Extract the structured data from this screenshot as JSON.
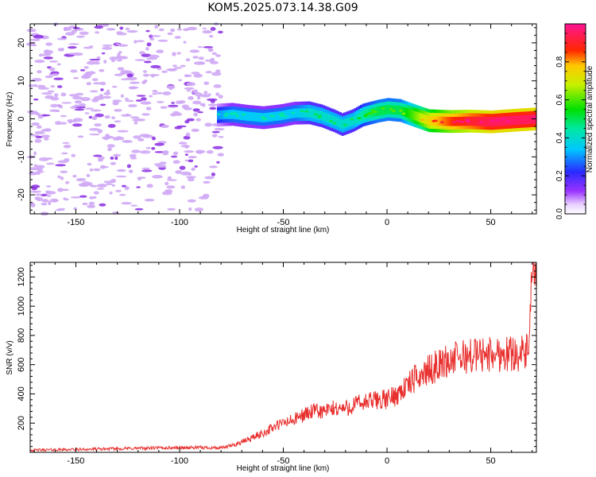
{
  "title": "KOM5.2025.073.14.38.G09",
  "chart_data": [
    {
      "type": "heatmap",
      "xlabel": "Height of straight line (km)",
      "ylabel": "Frequency (Hz)",
      "xlim": [
        -172,
        72
      ],
      "ylim": [
        -25,
        25
      ],
      "xticks": [
        -150,
        -100,
        -50,
        0,
        50
      ],
      "yticks": [
        -20,
        -10,
        0,
        10,
        20
      ],
      "colorbar": {
        "label": "Normalized spectral amplitude",
        "range": [
          0,
          1
        ],
        "ticks": [
          "0.0",
          "0.2",
          "0.4",
          "0.6",
          "0.8"
        ],
        "colormap": "rainbow (white → purple → blue → cyan → green → yellow → red → magenta)"
      },
      "noise_region_x": [
        -172,
        -80
      ],
      "ridge": {
        "x": [
          -82,
          -75,
          -68,
          -60,
          -52,
          -45,
          -38,
          -32,
          -26,
          -22,
          -17,
          -12,
          -5,
          0,
          6,
          12,
          20,
          30,
          40,
          50,
          60,
          72
        ],
        "freq": [
          1,
          1.2,
          0.7,
          0.3,
          0.8,
          1.5,
          1.6,
          0.8,
          -0.5,
          -1.5,
          -0.5,
          1,
          2,
          2.5,
          2.2,
          1,
          -0.5,
          -0.7,
          -0.6,
          -0.8,
          -0.4,
          0
        ],
        "amplitude": [
          0.3,
          0.35,
          0.35,
          0.35,
          0.35,
          0.35,
          0.4,
          0.4,
          0.4,
          0.4,
          0.4,
          0.45,
          0.5,
          0.5,
          0.5,
          0.6,
          0.75,
          0.85,
          0.9,
          0.95,
          0.95,
          0.95
        ]
      }
    },
    {
      "type": "line",
      "xlabel": "Height of straight line (km)",
      "ylabel": "SNR (v/v)",
      "xlim": [
        -172,
        72
      ],
      "ylim": [
        0,
        1300
      ],
      "xticks": [
        -150,
        -100,
        -50,
        0,
        50
      ],
      "yticks": [
        200,
        400,
        600,
        800,
        1000,
        1200
      ],
      "color": "#e8302e",
      "series": [
        {
          "x": [
            -172,
            -160,
            -150,
            -140,
            -130,
            -120,
            -110,
            -100,
            -90,
            -85,
            -80,
            -75,
            -70,
            -65,
            -60,
            -55,
            -50,
            -45,
            -40,
            -35,
            -30,
            -25,
            -20,
            -15,
            -10,
            -5,
            0,
            5,
            10,
            15,
            20,
            25,
            30,
            35,
            40,
            45,
            50,
            55,
            60,
            65,
            68,
            69,
            70,
            71,
            72
          ],
          "y": [
            15,
            18,
            20,
            22,
            25,
            28,
            30,
            32,
            32,
            32,
            30,
            45,
            70,
            100,
            130,
            170,
            200,
            220,
            260,
            280,
            280,
            300,
            300,
            330,
            340,
            360,
            360,
            400,
            460,
            520,
            560,
            600,
            630,
            650,
            660,
            670,
            670,
            675,
            680,
            680,
            680,
            1000,
            1150,
            1200,
            1150
          ]
        }
      ]
    }
  ]
}
